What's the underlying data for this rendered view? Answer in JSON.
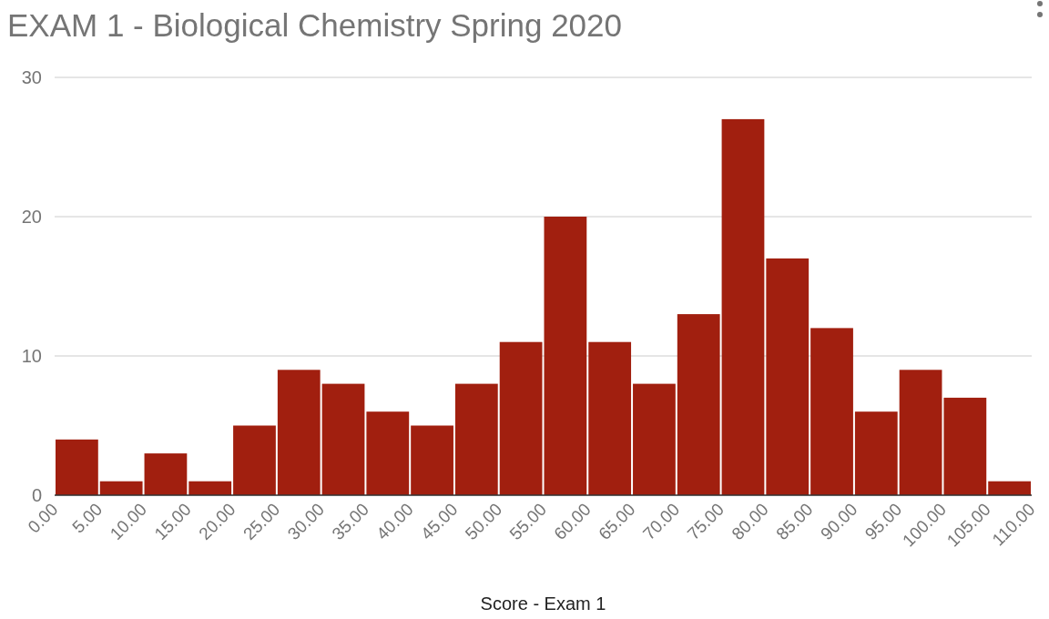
{
  "chart_data": {
    "type": "histogram",
    "title": "EXAM 1 - Biological Chemistry Spring 2020",
    "xlabel": "Score - Exam 1",
    "bins": [
      0,
      5,
      10,
      15,
      20,
      25,
      30,
      35,
      40,
      45,
      50,
      55,
      60,
      65,
      70,
      75,
      80,
      85,
      90,
      95,
      100,
      105,
      110
    ],
    "values": [
      4,
      1,
      3,
      1,
      5,
      9,
      8,
      6,
      5,
      8,
      11,
      20,
      11,
      8,
      13,
      27,
      17,
      12,
      6,
      9,
      7,
      1
    ],
    "color": "#a11f0f",
    "xlim": [
      0,
      110
    ],
    "xticks": [
      {
        "value": 0,
        "label": "0.00"
      },
      {
        "value": 5,
        "label": "5.00"
      },
      {
        "value": 10,
        "label": "10.00"
      },
      {
        "value": 15,
        "label": "15.00"
      },
      {
        "value": 20,
        "label": "20.00"
      },
      {
        "value": 25,
        "label": "25.00"
      },
      {
        "value": 30,
        "label": "30.00"
      },
      {
        "value": 35,
        "label": "35.00"
      },
      {
        "value": 40,
        "label": "40.00"
      },
      {
        "value": 45,
        "label": "45.00"
      },
      {
        "value": 50,
        "label": "50.00"
      },
      {
        "value": 55,
        "label": "55.00"
      },
      {
        "value": 60,
        "label": "60.00"
      },
      {
        "value": 65,
        "label": "65.00"
      },
      {
        "value": 70,
        "label": "70.00"
      },
      {
        "value": 75,
        "label": "75.00"
      },
      {
        "value": 80,
        "label": "80.00"
      },
      {
        "value": 85,
        "label": "85.00"
      },
      {
        "value": 90,
        "label": "90.00"
      },
      {
        "value": 95,
        "label": "95.00"
      },
      {
        "value": 100,
        "label": "100.00"
      },
      {
        "value": 105,
        "label": "105.00"
      },
      {
        "value": 110,
        "label": "110.00"
      }
    ],
    "ylim": [
      0,
      30
    ],
    "yticks": [
      0,
      10,
      20,
      30
    ],
    "grid": "y"
  }
}
